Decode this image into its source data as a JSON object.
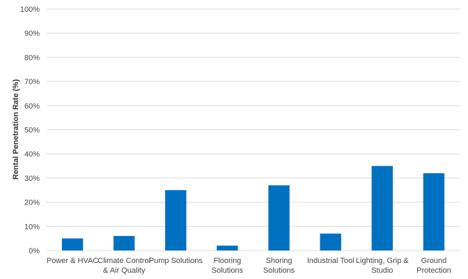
{
  "chart_data": {
    "type": "bar",
    "title": "",
    "xlabel": "",
    "ylabel": "Rental Penetration Rate (%)",
    "ylim": [
      0,
      100
    ],
    "yticks": [
      0,
      10,
      20,
      30,
      40,
      50,
      60,
      70,
      80,
      90,
      100
    ],
    "ytick_labels": [
      "0%",
      "10%",
      "20%",
      "30%",
      "40%",
      "50%",
      "60%",
      "70%",
      "80%",
      "90%",
      "100%"
    ],
    "grid": true,
    "bar_color": "#0070C0",
    "grid_color": "#D9D9D9",
    "categories": [
      [
        "Power & HVAC"
      ],
      [
        "Climate Control",
        "& Air Quality"
      ],
      [
        "Pump Solutions"
      ],
      [
        "Flooring",
        "Solutions"
      ],
      [
        "Shoring",
        "Solutions"
      ],
      [
        "Industrial Tool"
      ],
      [
        "Lighting, Grip &",
        "Studio"
      ],
      [
        "Ground",
        "Protection"
      ]
    ],
    "values": [
      5,
      6,
      25,
      2,
      27,
      7,
      35,
      32
    ]
  }
}
